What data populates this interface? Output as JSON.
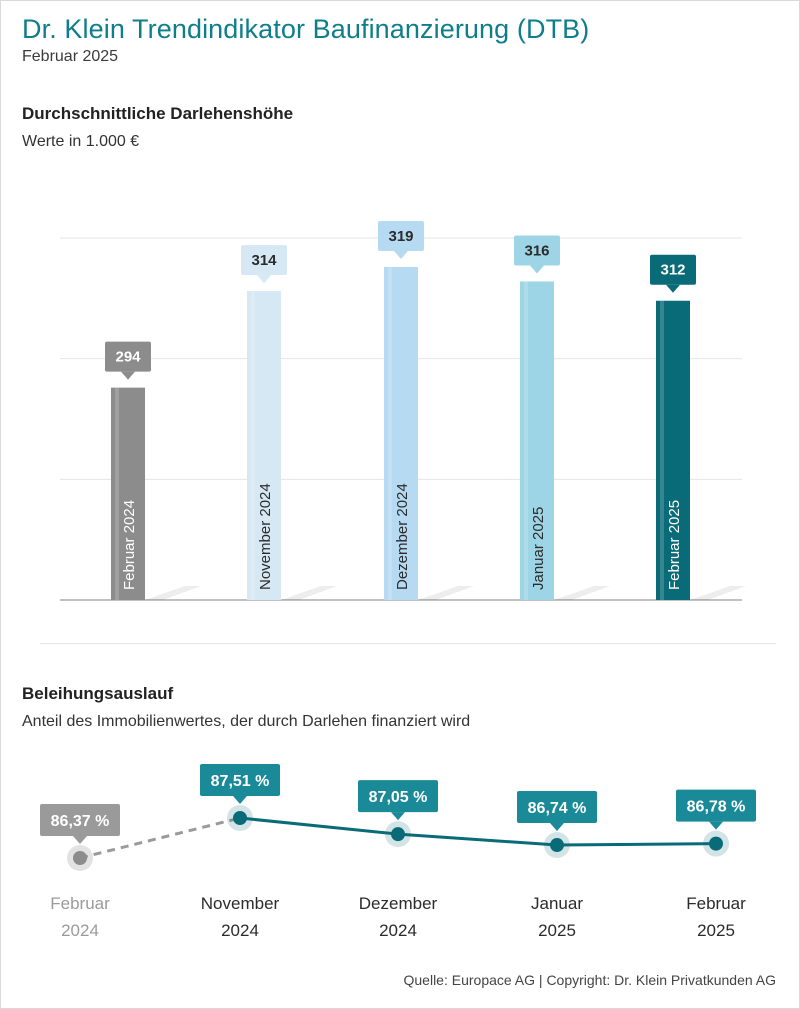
{
  "header": {
    "title": "Dr. Klein Trendindikator Baufinanzierung (DTB)",
    "subtitle": "Februar 2025"
  },
  "colors": {
    "brand": "#0f7e8c",
    "bar_colors": [
      "#8c8c8c",
      "#d7e8f5",
      "#b6daf2",
      "#9ed5e6",
      "#0a6b78"
    ],
    "bar_label_colors": [
      "#8c8c8c",
      "#d7e8f5",
      "#b6daf2",
      "#9ed5e6",
      "#0a6b78"
    ],
    "bar_value_text_colors": [
      "#ffffff",
      "#2b2b2b",
      "#2b2b2b",
      "#2b2b2b",
      "#ffffff"
    ],
    "bar_category_text_colors": [
      "#ffffff",
      "#2b2b2b",
      "#2b2b2b",
      "#2b2b2b",
      "#ffffff"
    ],
    "line": "#0a6b78",
    "line_dashed": "#9a9a9a",
    "callout": "#1a8a98",
    "callout_muted": "#9a9a9a",
    "axis_text_muted": "#9a9a9a",
    "axis_text": "#2b2b2b"
  },
  "chart_data": [
    {
      "type": "bar",
      "title": "Durchschnittliche Darlehenshöhe",
      "subtitle": "Werte in 1.000 €",
      "categories": [
        "Februar 2024",
        "November 2024",
        "Dezember 2024",
        "Januar 2025",
        "Februar 2025"
      ],
      "values": [
        294,
        314,
        319,
        316,
        312
      ],
      "value_labels": [
        "294",
        "314",
        "319",
        "316",
        "312"
      ],
      "ylim": [
        250,
        325
      ],
      "gridlines": [
        275,
        300,
        325
      ],
      "grid": true
    },
    {
      "type": "line",
      "title": "Beleihungsauslauf",
      "subtitle": "Anteil des Immobilienwertes, der durch Darlehen finanziert wird",
      "categories": [
        [
          "Februar",
          "2024"
        ],
        [
          "November",
          "2024"
        ],
        [
          "Dezember",
          "2024"
        ],
        [
          "Januar",
          "2025"
        ],
        [
          "Februar",
          "2025"
        ]
      ],
      "values": [
        86.37,
        87.51,
        87.05,
        86.74,
        86.78
      ],
      "value_labels": [
        "86,37 %",
        "87,51 %",
        "87,05 %",
        "86,74 %",
        "86,78 %"
      ],
      "ylim": [
        86.2,
        87.6
      ],
      "first_segment_dashed": true
    }
  ],
  "footer": {
    "source": "Quelle: Europace AG | Copyright: Dr. Klein Privatkunden AG"
  }
}
